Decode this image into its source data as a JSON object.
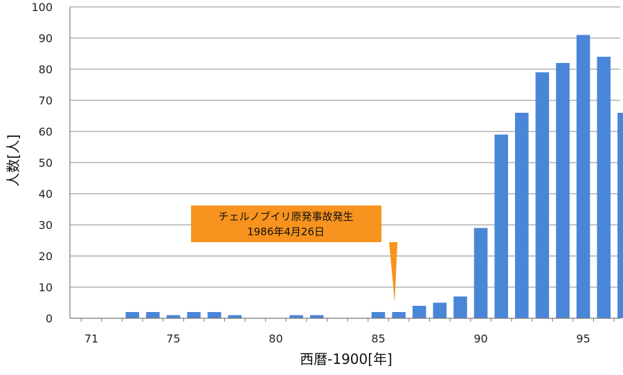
{
  "chart_data": {
    "type": "bar",
    "x": [
      71,
      72,
      73,
      74,
      75,
      76,
      77,
      78,
      79,
      80,
      81,
      82,
      83,
      84,
      85,
      86,
      87,
      88,
      89,
      90,
      91,
      92,
      93,
      94,
      95,
      96,
      97
    ],
    "values": [
      0,
      0,
      2,
      2,
      1,
      2,
      2,
      1,
      0,
      0,
      1,
      1,
      0,
      0,
      2,
      2,
      4,
      5,
      7,
      29,
      59,
      66,
      79,
      82,
      91,
      84,
      66
    ],
    "xlabel": "西暦-1900[年]",
    "ylabel": "人数[人]",
    "xticks": [
      "71",
      "75",
      "80",
      "85",
      "90",
      "95"
    ],
    "yticks": [
      "0",
      "10",
      "20",
      "30",
      "40",
      "50",
      "60",
      "70",
      "80",
      "90",
      "100"
    ],
    "ylim": [
      0,
      100
    ],
    "bar_color": "#4a86d8",
    "grid": "horizontal",
    "annotation": {
      "line1": "チェルノブイリ原発事故発生",
      "line2": "1986年4月26日",
      "points_to_x": 86,
      "color": "#f7931e"
    }
  }
}
